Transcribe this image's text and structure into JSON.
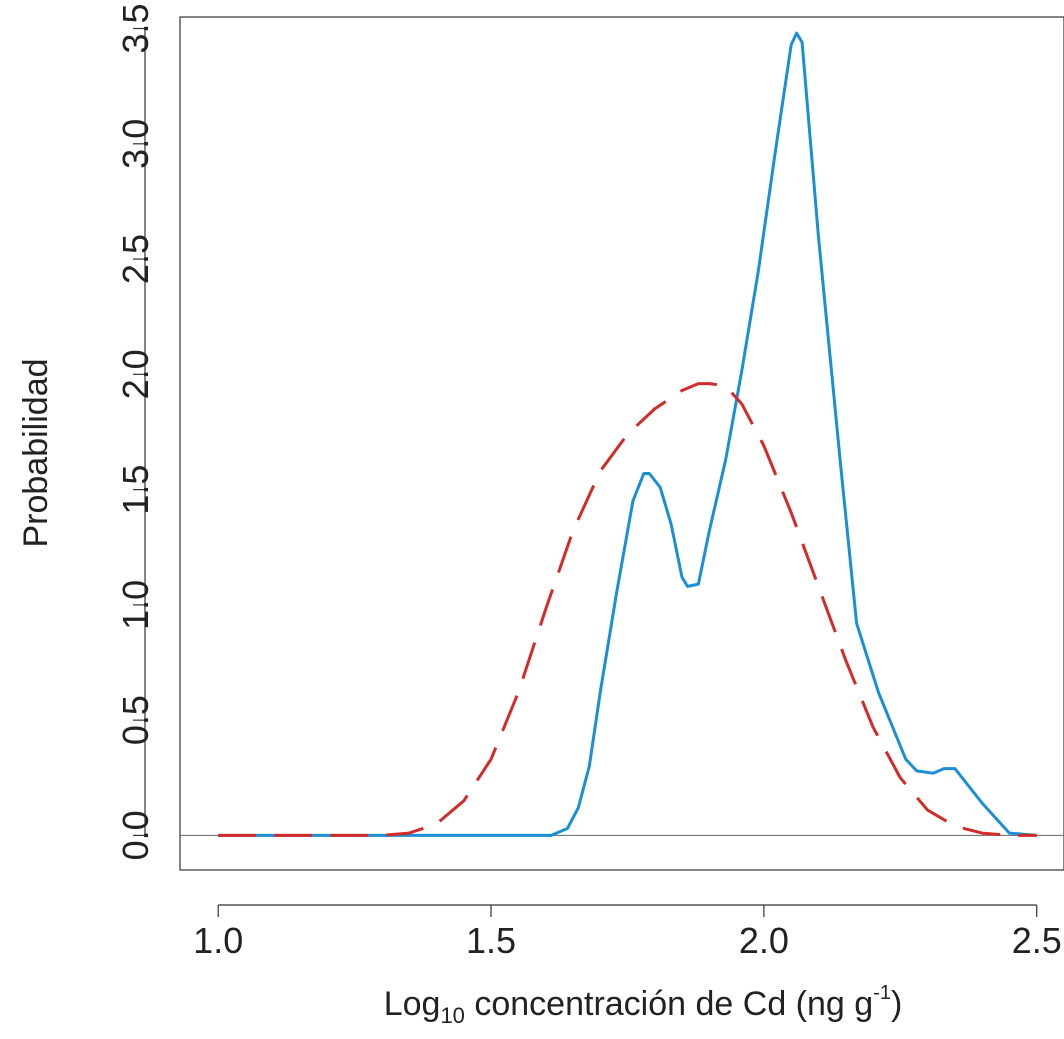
{
  "chart_data": {
    "type": "line",
    "xlabel": {
      "base": "Log",
      "subscript": "10",
      "after_subscript": " concentración de Cd (ng g",
      "superscript": "-1",
      "after_superscript": ")"
    },
    "ylabel": "Probabilidad",
    "xlim": [
      0.93,
      2.55
    ],
    "ylim": [
      -0.15,
      3.55
    ],
    "xticks": [
      1.0,
      1.5,
      2.0,
      2.5
    ],
    "xtick_labels": [
      "1.0",
      "1.5",
      "2.0",
      "2.5"
    ],
    "yticks": [
      0.0,
      0.5,
      1.0,
      1.5,
      2.0,
      2.5,
      3.0,
      3.5
    ],
    "ytick_labels": [
      "0.0",
      "0.5",
      "1.0",
      "1.5",
      "2.0",
      "2.5",
      "3.0",
      "3.5"
    ],
    "grid": false,
    "legend": "none",
    "reference_lines": [
      {
        "y": 0.0,
        "color": "#666666"
      }
    ],
    "series": [
      {
        "color": "#1B8FD6",
        "style": "solid",
        "points": [
          [
            1.0,
            0.0
          ],
          [
            1.3,
            0.0
          ],
          [
            1.61,
            0.0
          ],
          [
            1.64,
            0.03
          ],
          [
            1.66,
            0.12
          ],
          [
            1.68,
            0.3
          ],
          [
            1.7,
            0.62
          ],
          [
            1.73,
            1.05
          ],
          [
            1.76,
            1.45
          ],
          [
            1.78,
            1.57
          ],
          [
            1.79,
            1.57
          ],
          [
            1.81,
            1.51
          ],
          [
            1.83,
            1.35
          ],
          [
            1.85,
            1.12
          ],
          [
            1.86,
            1.08
          ],
          [
            1.88,
            1.09
          ],
          [
            1.9,
            1.32
          ],
          [
            1.93,
            1.63
          ],
          [
            1.96,
            2.02
          ],
          [
            1.99,
            2.45
          ],
          [
            2.02,
            2.95
          ],
          [
            2.05,
            3.43
          ],
          [
            2.06,
            3.48
          ],
          [
            2.07,
            3.44
          ],
          [
            2.1,
            2.6
          ],
          [
            2.14,
            1.62
          ],
          [
            2.17,
            0.92
          ],
          [
            2.21,
            0.62
          ],
          [
            2.26,
            0.33
          ],
          [
            2.28,
            0.28
          ],
          [
            2.31,
            0.27
          ],
          [
            2.33,
            0.29
          ],
          [
            2.35,
            0.29
          ],
          [
            2.4,
            0.14
          ],
          [
            2.45,
            0.01
          ],
          [
            2.5,
            0.0
          ]
        ]
      },
      {
        "color": "#D22B28",
        "style": "dashed",
        "points": [
          [
            1.0,
            0.0
          ],
          [
            1.3,
            0.0
          ],
          [
            1.35,
            0.01
          ],
          [
            1.4,
            0.05
          ],
          [
            1.45,
            0.15
          ],
          [
            1.5,
            0.33
          ],
          [
            1.55,
            0.62
          ],
          [
            1.6,
            0.98
          ],
          [
            1.65,
            1.32
          ],
          [
            1.7,
            1.58
          ],
          [
            1.75,
            1.74
          ],
          [
            1.8,
            1.85
          ],
          [
            1.85,
            1.93
          ],
          [
            1.88,
            1.96
          ],
          [
            1.9,
            1.96
          ],
          [
            1.93,
            1.95
          ],
          [
            1.96,
            1.87
          ],
          [
            2.0,
            1.69
          ],
          [
            2.05,
            1.4
          ],
          [
            2.1,
            1.08
          ],
          [
            2.15,
            0.76
          ],
          [
            2.2,
            0.47
          ],
          [
            2.25,
            0.25
          ],
          [
            2.3,
            0.11
          ],
          [
            2.35,
            0.04
          ],
          [
            2.4,
            0.01
          ],
          [
            2.45,
            0.0
          ],
          [
            2.5,
            0.0
          ]
        ]
      }
    ]
  }
}
